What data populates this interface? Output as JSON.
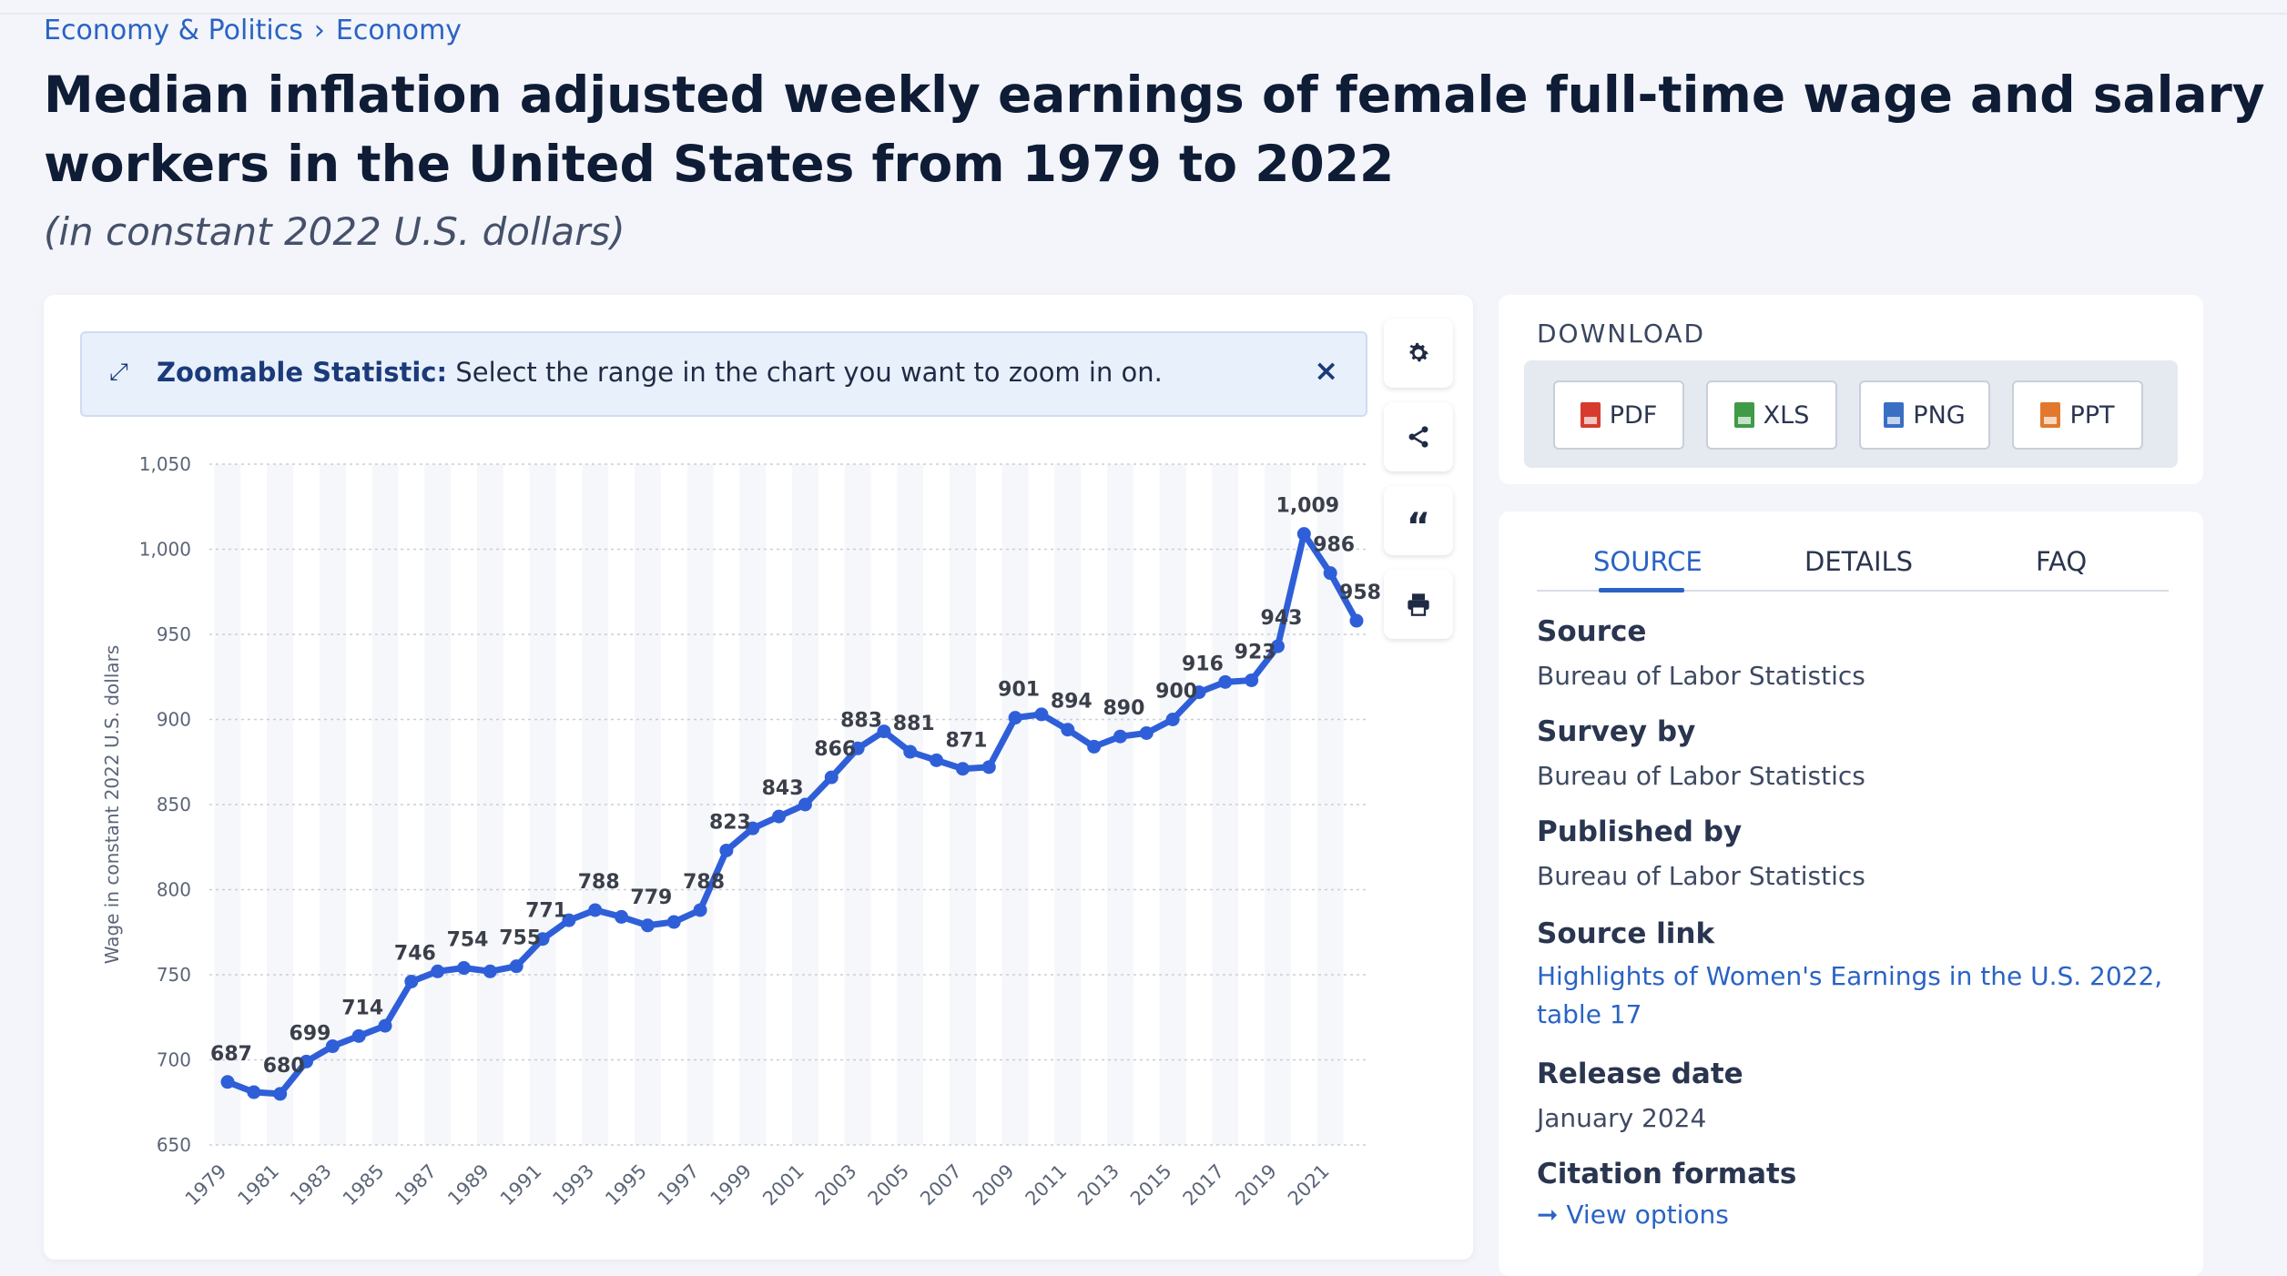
{
  "breadcrumb": {
    "items": [
      "Economy & Politics",
      "Economy"
    ],
    "separator": "›"
  },
  "page": {
    "title": "Median inflation adjusted weekly earnings of female full-time wage and salary workers in the United States from 1979 to 2022",
    "subtitle": "(in constant 2022 U.S. dollars)"
  },
  "zoom": {
    "label": "Zoomable Statistic:",
    "text": "Select the range in the chart you want to zoom in on.",
    "close": "×"
  },
  "toolbar": {
    "icons": [
      "gear-icon",
      "share-icon",
      "quote-icon",
      "print-icon"
    ]
  },
  "download": {
    "title": "DOWNLOAD",
    "buttons": [
      {
        "label": "PDF",
        "color": "#d63b2f"
      },
      {
        "label": "XLS",
        "color": "#3f9b45"
      },
      {
        "label": "PNG",
        "color": "#3a6fc4"
      },
      {
        "label": "PPT",
        "color": "#e2782c"
      }
    ]
  },
  "source_panel": {
    "tabs": [
      "SOURCE",
      "DETAILS",
      "FAQ"
    ],
    "source_label": "Source",
    "source_value": "Bureau of Labor Statistics",
    "survey_label": "Survey by",
    "survey_value": "Bureau of Labor Statistics",
    "published_label": "Published by",
    "published_value": "Bureau of Labor Statistics",
    "link_label": "Source link",
    "link_value": "Highlights of Women's Earnings in the U.S. 2022, table 17",
    "release_label": "Release date",
    "release_value": "January 2024",
    "citation_label": "Citation formats",
    "citation_link": "View options"
  },
  "colors": {
    "accent": "#2a63c4",
    "line": "#2f5fd8"
  },
  "chart_data": {
    "type": "line",
    "title": "",
    "xlabel": "",
    "ylabel": "Wage in constant 2022 U.S. dollars",
    "ylim": [
      650,
      1050
    ],
    "yticks": [
      650,
      700,
      750,
      800,
      850,
      900,
      950,
      1000,
      1050
    ],
    "ytick_labels": [
      "650",
      "700",
      "750",
      "800",
      "850",
      "900",
      "950",
      "1,000",
      "1,050"
    ],
    "x": [
      1979,
      1980,
      1981,
      1982,
      1983,
      1984,
      1985,
      1986,
      1987,
      1988,
      1989,
      1990,
      1991,
      1992,
      1993,
      1994,
      1995,
      1996,
      1997,
      1998,
      1999,
      2000,
      2001,
      2002,
      2003,
      2004,
      2005,
      2006,
      2007,
      2008,
      2009,
      2010,
      2011,
      2012,
      2013,
      2014,
      2015,
      2016,
      2017,
      2018,
      2019,
      2020,
      2021,
      2022
    ],
    "xtick_labels": [
      "1979",
      "1981",
      "1983",
      "1985",
      "1987",
      "1989",
      "1991",
      "1993",
      "1995",
      "1997",
      "1999",
      "2001",
      "2003",
      "2005",
      "2007",
      "2009",
      "2011",
      "2013",
      "2015",
      "2017",
      "2019",
      "2021"
    ],
    "values": [
      687,
      681,
      680,
      699,
      708,
      714,
      720,
      746,
      752,
      754,
      752,
      755,
      771,
      782,
      788,
      784,
      779,
      781,
      788,
      823,
      836,
      843,
      850,
      866,
      883,
      893,
      881,
      876,
      871,
      872,
      901,
      903,
      894,
      884,
      890,
      892,
      900,
      916,
      922,
      923,
      943,
      1009,
      986,
      958
    ],
    "point_labels": {
      "1979": "687",
      "1981": "680",
      "1982": "699",
      "1984": "714",
      "1986": "746",
      "1988": "754",
      "1990": "755",
      "1991": "771",
      "1993": "788",
      "1995": "779",
      "1997": "788",
      "1998": "823",
      "2000": "843",
      "2002": "866",
      "2003": "883",
      "2005": "881",
      "2007": "871",
      "2009": "901",
      "2011": "894",
      "2013": "890",
      "2015": "900",
      "2016": "916",
      "2018": "923",
      "2019": "943",
      "2020": "1,009",
      "2021": "986",
      "2022": "958"
    },
    "grid": true,
    "legend": "none"
  }
}
